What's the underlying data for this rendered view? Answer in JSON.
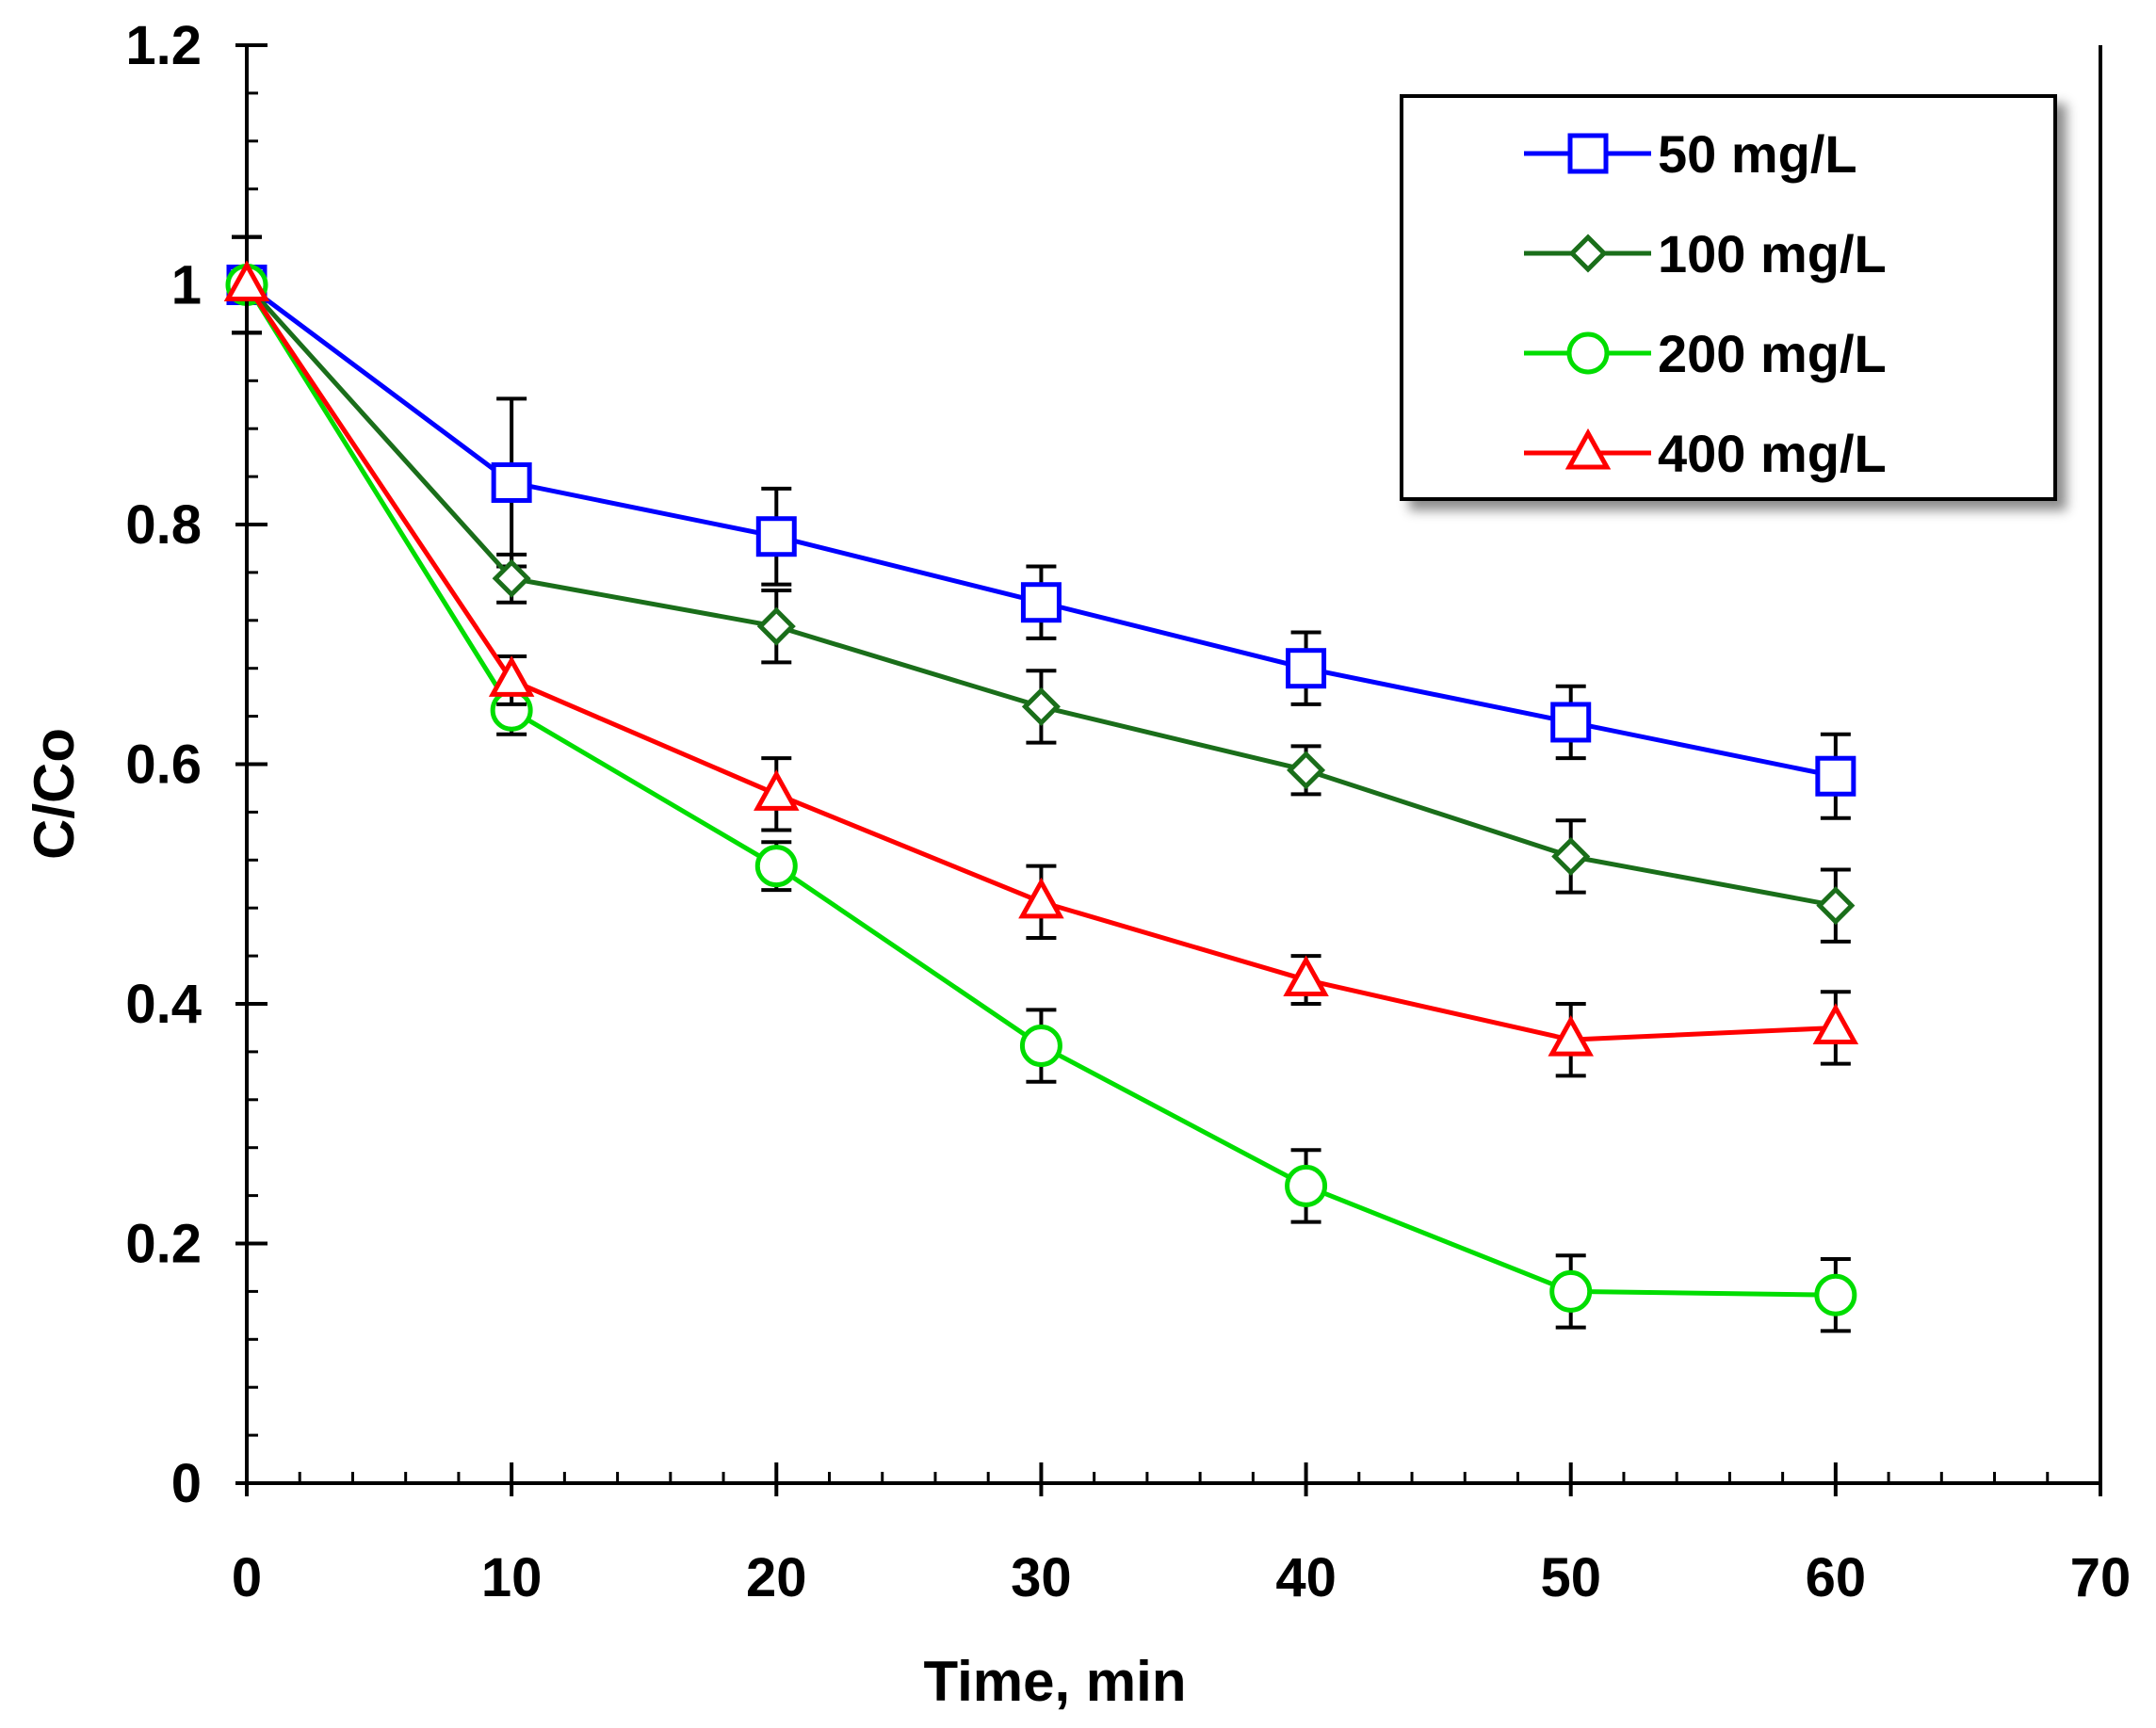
{
  "chart_data": {
    "type": "line",
    "title": "",
    "xlabel": "Time, min",
    "ylabel": "C/Co",
    "xlim": [
      0,
      70
    ],
    "ylim": [
      0,
      1.2
    ],
    "x_ticks": [
      0,
      10,
      20,
      30,
      40,
      50,
      60,
      70
    ],
    "x_tick_labels": [
      "0",
      "10",
      "20",
      "30",
      "40",
      "50",
      "60",
      "70"
    ],
    "y_ticks": [
      0,
      0.2,
      0.4,
      0.6,
      0.8,
      1,
      1.2
    ],
    "y_tick_labels": [
      "0",
      "0.2",
      "0.4",
      "0.6",
      "0.8",
      "1",
      "1.2"
    ],
    "x_minor_step": 2,
    "y_minor_step": 0.04,
    "grid": false,
    "legend_position": "top-right",
    "x": [
      0,
      10,
      20,
      30,
      40,
      50,
      60
    ],
    "series": [
      {
        "name": "50 mg/L",
        "color": "#0000ff",
        "marker": "square",
        "values": [
          1.0,
          0.835,
          0.79,
          0.735,
          0.68,
          0.635,
          0.59
        ],
        "errors": [
          0.04,
          0.07,
          0.04,
          0.03,
          0.03,
          0.03,
          0.035
        ]
      },
      {
        "name": "100 mg/L",
        "color": "#1a6e1a",
        "marker": "diamond",
        "values": [
          1.0,
          0.755,
          0.715,
          0.648,
          0.595,
          0.523,
          0.482
        ],
        "errors": [
          0.04,
          0.02,
          0.03,
          0.03,
          0.02,
          0.03,
          0.03
        ]
      },
      {
        "name": "200 mg/L",
        "color": "#00dd00",
        "marker": "circle",
        "values": [
          1.0,
          0.645,
          0.515,
          0.365,
          0.248,
          0.16,
          0.157
        ],
        "errors": [
          0.04,
          0.02,
          0.02,
          0.03,
          0.03,
          0.03,
          0.03
        ]
      },
      {
        "name": "400 mg/L",
        "color": "#ff0000",
        "marker": "triangle",
        "values": [
          1.0,
          0.67,
          0.575,
          0.485,
          0.42,
          0.37,
          0.38
        ],
        "errors": [
          0.04,
          0.02,
          0.03,
          0.03,
          0.02,
          0.03,
          0.03
        ]
      }
    ]
  }
}
